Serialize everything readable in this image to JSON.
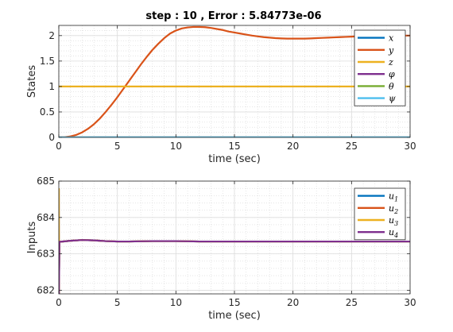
{
  "chart_data": [
    {
      "type": "line",
      "title": "step : 10 , Error : 5.84773e-06",
      "xlabel": "time (sec)",
      "ylabel": "States",
      "xlim": [
        0,
        30
      ],
      "ylim": [
        0,
        2.2
      ],
      "xticks": [
        0,
        5,
        10,
        15,
        20,
        25,
        30
      ],
      "xtick_labels": [
        "0",
        "5",
        "10",
        "15",
        "20",
        "25",
        "30"
      ],
      "yticks": [
        0,
        0.5,
        1,
        1.5,
        2
      ],
      "ytick_labels": [
        "0",
        "0.5",
        "1",
        "1.5",
        "2"
      ],
      "grid": true,
      "minor_grid": true,
      "legend_position": "top-right",
      "series": [
        {
          "name": "x",
          "color": "#0072BD",
          "x": [
            0,
            30
          ],
          "y": [
            0,
            0
          ]
        },
        {
          "name": "y",
          "color": "#D95319",
          "x": [
            0,
            0.5,
            1,
            1.5,
            2,
            2.5,
            3,
            3.5,
            4,
            4.5,
            5,
            5.5,
            6,
            6.5,
            7,
            7.5,
            8,
            8.5,
            9,
            9.5,
            10,
            10.5,
            11,
            11.5,
            12,
            12.5,
            13,
            13.5,
            14,
            14.5,
            15,
            15.5,
            16,
            16.5,
            17,
            17.5,
            18,
            18.5,
            19,
            19.5,
            20,
            20.5,
            21,
            21.5,
            22,
            22.5,
            23,
            23.5,
            24,
            24.5,
            25,
            25.5,
            26,
            26.5,
            27,
            27.5,
            28,
            28.5,
            29,
            29.5,
            30
          ],
          "y": [
            0,
            0.005,
            0.02,
            0.05,
            0.1,
            0.17,
            0.26,
            0.37,
            0.5,
            0.64,
            0.79,
            0.95,
            1.11,
            1.27,
            1.43,
            1.58,
            1.72,
            1.84,
            1.95,
            2.04,
            2.1,
            2.14,
            2.16,
            2.17,
            2.17,
            2.165,
            2.15,
            2.13,
            2.11,
            2.08,
            2.06,
            2.04,
            2.02,
            2.0,
            1.985,
            1.97,
            1.96,
            1.95,
            1.945,
            1.94,
            1.94,
            1.94,
            1.94,
            1.945,
            1.95,
            1.955,
            1.96,
            1.965,
            1.97,
            1.975,
            1.98,
            1.985,
            1.99,
            1.99,
            1.995,
            1.995,
            2.0,
            2.0,
            2.0,
            2.0,
            2.0
          ]
        },
        {
          "name": "z",
          "color": "#EDB120",
          "x": [
            0,
            30
          ],
          "y": [
            1,
            1
          ]
        },
        {
          "name": "φ",
          "color": "#7E2F8E",
          "x": [
            0,
            30
          ],
          "y": [
            0,
            0
          ]
        },
        {
          "name": "θ",
          "color": "#77AC30",
          "x": [
            0,
            30
          ],
          "y": [
            0,
            0
          ]
        },
        {
          "name": "ψ",
          "color": "#4DBEEE",
          "x": [
            0,
            30
          ],
          "y": [
            0,
            0
          ]
        }
      ]
    },
    {
      "type": "line",
      "title": "",
      "xlabel": "time (sec)",
      "ylabel": "Inputs",
      "xlim": [
        0,
        30
      ],
      "ylim": [
        681.9,
        685
      ],
      "xticks": [
        0,
        5,
        10,
        15,
        20,
        25,
        30
      ],
      "xtick_labels": [
        "0",
        "5",
        "10",
        "15",
        "20",
        "25",
        "30"
      ],
      "yticks": [
        682,
        683,
        684,
        685
      ],
      "ytick_labels": [
        "682",
        "683",
        "684",
        "685"
      ],
      "grid": true,
      "minor_grid": true,
      "legend_position": "top-right",
      "series": [
        {
          "name": "u1",
          "color": "#0072BD",
          "x": [
            0,
            0.01,
            0.05,
            1,
            2,
            3,
            4,
            5,
            6,
            8,
            10,
            12,
            15,
            20,
            25,
            30
          ],
          "y": [
            684.8,
            681.9,
            683.33,
            683.36,
            683.38,
            683.37,
            683.35,
            683.34,
            683.34,
            683.35,
            683.35,
            683.34,
            683.34,
            683.34,
            683.34,
            683.34
          ]
        },
        {
          "name": "u2",
          "color": "#D95319",
          "x": [
            0,
            0.01,
            0.05,
            1,
            2,
            3,
            4,
            5,
            6,
            8,
            10,
            12,
            15,
            20,
            25,
            30
          ],
          "y": [
            684.8,
            681.9,
            683.33,
            683.36,
            683.38,
            683.37,
            683.35,
            683.34,
            683.34,
            683.35,
            683.35,
            683.34,
            683.34,
            683.34,
            683.34,
            683.34
          ]
        },
        {
          "name": "u3",
          "color": "#EDB120",
          "x": [
            0,
            0.01,
            0.05,
            1,
            2,
            3,
            4,
            5,
            6,
            8,
            10,
            12,
            15,
            20,
            25,
            30
          ],
          "y": [
            684.8,
            681.9,
            683.33,
            683.36,
            683.38,
            683.37,
            683.35,
            683.34,
            683.34,
            683.35,
            683.35,
            683.34,
            683.34,
            683.34,
            683.34,
            683.34
          ]
        },
        {
          "name": "u4",
          "color": "#7E2F8E",
          "x": [
            0,
            0.01,
            0.05,
            1,
            2,
            3,
            4,
            5,
            6,
            8,
            10,
            12,
            15,
            20,
            25,
            30
          ],
          "y": [
            681.9,
            681.9,
            683.33,
            683.36,
            683.38,
            683.37,
            683.35,
            683.34,
            683.34,
            683.35,
            683.35,
            683.34,
            683.34,
            683.34,
            683.34,
            683.34
          ]
        }
      ]
    }
  ]
}
